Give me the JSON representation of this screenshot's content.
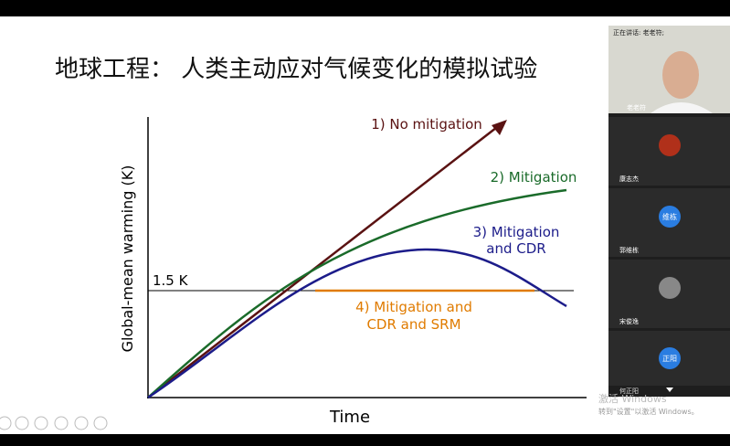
{
  "slide": {
    "title": "地球工程： 人类主动应对气候变化的模拟试验",
    "chart": {
      "y_label": "Global-mean warming (K)",
      "x_label": "Time",
      "threshold_label": "1.5 K",
      "curves": [
        {
          "label": [
            "1) No mitigation"
          ]
        },
        {
          "label": [
            "2) Mitigation"
          ]
        },
        {
          "label": [
            "3) Mitigation",
            "and CDR"
          ]
        },
        {
          "label": [
            "4) Mitigation and",
            "CDR and SRM"
          ]
        }
      ]
    }
  },
  "panel": {
    "speaking": "正在讲话: 老老符;",
    "participants": [
      {
        "name": "老老符"
      },
      {
        "name": "康志杰"
      },
      {
        "name": "郭维栋",
        "avatar": "维栋"
      },
      {
        "name": "宋俊逸"
      },
      {
        "name": "何正阳",
        "avatar": "正阳"
      }
    ]
  },
  "watermark": [
    "激活 Windows",
    "转到\"设置\"以激活 Windows。"
  ]
}
